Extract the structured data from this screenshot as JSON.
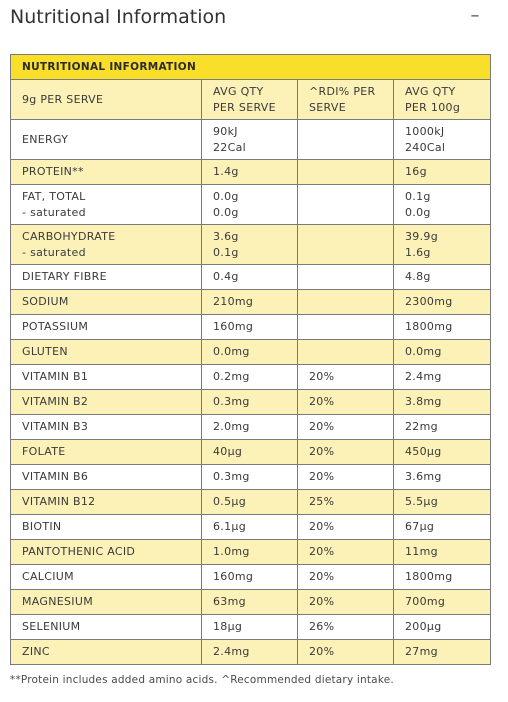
{
  "page": {
    "title": "Nutritional Information",
    "collapse_icon_glyph": "–"
  },
  "table": {
    "title": "NUTRITIONAL INFORMATION",
    "headers": {
      "serving": "9g PER SERVE",
      "avg_serve_1": "AVG QTY",
      "avg_serve_2": "PER SERVE",
      "rdi_1": "^RDI% PER",
      "rdi_2": "SERVE",
      "avg_100_1": "AVG QTY",
      "avg_100_2": "PER 100g"
    },
    "rows": [
      {
        "name": [
          "ENERGY"
        ],
        "serve": [
          "90kJ",
          "22Cal"
        ],
        "rdi": [],
        "per100": [
          "1000kJ",
          "240Cal"
        ],
        "shade": "white"
      },
      {
        "name": [
          "PROTEIN**"
        ],
        "serve": [
          "1.4g"
        ],
        "rdi": [],
        "per100": [
          "16g"
        ],
        "shade": "yellow"
      },
      {
        "name": [
          "FAT, TOTAL",
          "- saturated"
        ],
        "serve": [
          "0.0g",
          "0.0g"
        ],
        "rdi": [],
        "per100": [
          "0.1g",
          "0.0g"
        ],
        "shade": "white"
      },
      {
        "name": [
          "CARBOHYDRATE",
          "- saturated"
        ],
        "serve": [
          "3.6g",
          "0.1g"
        ],
        "rdi": [],
        "per100": [
          "39.9g",
          "1.6g"
        ],
        "shade": "yellow"
      },
      {
        "name": [
          "DIETARY FIBRE"
        ],
        "serve": [
          "0.4g"
        ],
        "rdi": [],
        "per100": [
          "4.8g"
        ],
        "shade": "white"
      },
      {
        "name": [
          "SODIUM"
        ],
        "serve": [
          "210mg"
        ],
        "rdi": [],
        "per100": [
          "2300mg"
        ],
        "shade": "yellow"
      },
      {
        "name": [
          "POTASSIUM"
        ],
        "serve": [
          "160mg"
        ],
        "rdi": [],
        "per100": [
          "1800mg"
        ],
        "shade": "white"
      },
      {
        "name": [
          "GLUTEN"
        ],
        "serve": [
          "0.0mg"
        ],
        "rdi": [],
        "per100": [
          "0.0mg"
        ],
        "shade": "yellow"
      },
      {
        "name": [
          "VITAMIN B1"
        ],
        "serve": [
          "0.2mg"
        ],
        "rdi": [
          "20%"
        ],
        "per100": [
          "2.4mg"
        ],
        "shade": "white"
      },
      {
        "name": [
          "VITAMIN B2"
        ],
        "serve": [
          "0.3mg"
        ],
        "rdi": [
          "20%"
        ],
        "per100": [
          "3.8mg"
        ],
        "shade": "yellow"
      },
      {
        "name": [
          "VITAMIN B3"
        ],
        "serve": [
          "2.0mg"
        ],
        "rdi": [
          "20%"
        ],
        "per100": [
          "22mg"
        ],
        "shade": "white"
      },
      {
        "name": [
          "FOLATE"
        ],
        "serve": [
          "40µg"
        ],
        "rdi": [
          "20%"
        ],
        "per100": [
          "450µg"
        ],
        "shade": "yellow"
      },
      {
        "name": [
          "VITAMIN B6"
        ],
        "serve": [
          "0.3mg"
        ],
        "rdi": [
          "20%"
        ],
        "per100": [
          "3.6mg"
        ],
        "shade": "white"
      },
      {
        "name": [
          "VITAMIN B12"
        ],
        "serve": [
          "0.5µg"
        ],
        "rdi": [
          "25%"
        ],
        "per100": [
          "5.5µg"
        ],
        "shade": "yellow"
      },
      {
        "name": [
          "BIOTIN"
        ],
        "serve": [
          "6.1µg"
        ],
        "rdi": [
          "20%"
        ],
        "per100": [
          "67µg"
        ],
        "shade": "white"
      },
      {
        "name": [
          "PANTOTHENIC ACID"
        ],
        "serve": [
          "1.0mg"
        ],
        "rdi": [
          "20%"
        ],
        "per100": [
          "11mg"
        ],
        "shade": "yellow"
      },
      {
        "name": [
          "CALCIUM"
        ],
        "serve": [
          "160mg"
        ],
        "rdi": [
          "20%"
        ],
        "per100": [
          "1800mg"
        ],
        "shade": "white"
      },
      {
        "name": [
          "MAGNESIUM"
        ],
        "serve": [
          "63mg"
        ],
        "rdi": [
          "20%"
        ],
        "per100": [
          "700mg"
        ],
        "shade": "yellow"
      },
      {
        "name": [
          "SELENIUM"
        ],
        "serve": [
          "18µg"
        ],
        "rdi": [
          "26%"
        ],
        "per100": [
          "200µg"
        ],
        "shade": "white"
      },
      {
        "name": [
          "ZINC"
        ],
        "serve": [
          "2.4mg"
        ],
        "rdi": [
          "20%"
        ],
        "per100": [
          "27mg"
        ],
        "shade": "yellow"
      }
    ]
  },
  "footnote": "**Protein includes added amino acids. ^Recommended dietary intake.",
  "colors": {
    "title_yellow": "#f9df2a",
    "row_yellow": "#fcf2b8",
    "border": "#7a7a7a"
  }
}
